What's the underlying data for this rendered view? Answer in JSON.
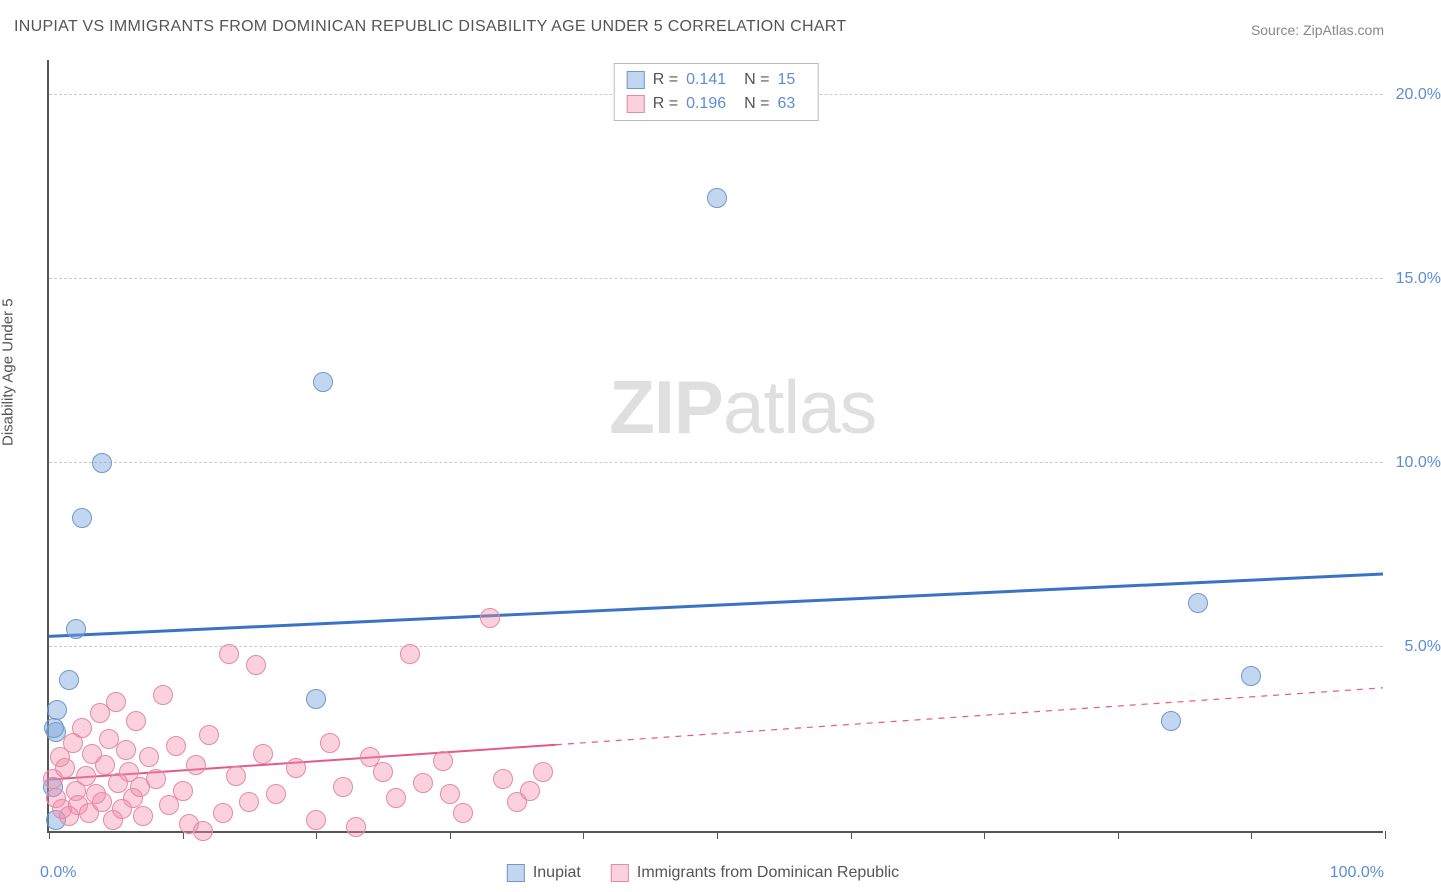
{
  "title": "INUPIAT VS IMMIGRANTS FROM DOMINICAN REPUBLIC DISABILITY AGE UNDER 5 CORRELATION CHART",
  "source": "Source: ZipAtlas.com",
  "ylabel": "Disability Age Under 5",
  "watermark_zip": "ZIP",
  "watermark_atlas": "atlas",
  "chart": {
    "type": "scatter",
    "x_axis": {
      "min": 0,
      "max": 100,
      "ticks": [
        0,
        10,
        20,
        30,
        40,
        50,
        60,
        70,
        80,
        90,
        100
      ],
      "label_min": "0.0%",
      "label_max": "100.0%"
    },
    "y_axis": {
      "min": 0,
      "max": 21,
      "gridlines": [
        5,
        10,
        15,
        20
      ],
      "labels": [
        "5.0%",
        "10.0%",
        "15.0%",
        "20.0%"
      ]
    },
    "series": [
      {
        "name": "Inupiat",
        "color_fill": "rgba(121,163,220,0.45)",
        "color_stroke": "#6e99d0",
        "marker_r": 10,
        "R": "0.141",
        "N": "15",
        "trend": {
          "y_at_x0": 5.3,
          "y_at_x100": 7.0,
          "solid_to_x": 100,
          "stroke": "#3a72c8",
          "width": 3
        },
        "points": [
          {
            "x": 0.5,
            "y": 0.3
          },
          {
            "x": 0.3,
            "y": 1.2
          },
          {
            "x": 0.5,
            "y": 2.7
          },
          {
            "x": 0.6,
            "y": 3.3
          },
          {
            "x": 1.5,
            "y": 4.1
          },
          {
            "x": 2.0,
            "y": 5.5
          },
          {
            "x": 2.5,
            "y": 8.5
          },
          {
            "x": 4.0,
            "y": 10.0
          },
          {
            "x": 20.0,
            "y": 3.6
          },
          {
            "x": 20.5,
            "y": 12.2
          },
          {
            "x": 50.0,
            "y": 17.2
          },
          {
            "x": 84.0,
            "y": 3.0
          },
          {
            "x": 86.0,
            "y": 6.2
          },
          {
            "x": 90.0,
            "y": 4.2
          },
          {
            "x": 0.4,
            "y": 2.8
          }
        ]
      },
      {
        "name": "Immigrants from Dominican Republic",
        "color_fill": "rgba(242,140,168,0.40)",
        "color_stroke": "#e68aa5",
        "marker_r": 10,
        "R": "0.196",
        "N": "63",
        "trend": {
          "y_at_x0": 1.4,
          "y_at_x100": 3.9,
          "solid_to_x": 38,
          "stroke": "#e05a8a",
          "width": 2
        },
        "points": [
          {
            "x": 0.3,
            "y": 1.4
          },
          {
            "x": 0.5,
            "y": 0.9
          },
          {
            "x": 0.8,
            "y": 2.0
          },
          {
            "x": 1.0,
            "y": 0.6
          },
          {
            "x": 1.2,
            "y": 1.7
          },
          {
            "x": 1.5,
            "y": 0.4
          },
          {
            "x": 1.8,
            "y": 2.4
          },
          {
            "x": 2.0,
            "y": 1.1
          },
          {
            "x": 2.2,
            "y": 0.7
          },
          {
            "x": 2.5,
            "y": 2.8
          },
          {
            "x": 2.8,
            "y": 1.5
          },
          {
            "x": 3.0,
            "y": 0.5
          },
          {
            "x": 3.2,
            "y": 2.1
          },
          {
            "x": 3.5,
            "y": 1.0
          },
          {
            "x": 3.8,
            "y": 3.2
          },
          {
            "x": 4.0,
            "y": 0.8
          },
          {
            "x": 4.2,
            "y": 1.8
          },
          {
            "x": 4.5,
            "y": 2.5
          },
          {
            "x": 4.8,
            "y": 0.3
          },
          {
            "x": 5.0,
            "y": 3.5
          },
          {
            "x": 5.2,
            "y": 1.3
          },
          {
            "x": 5.5,
            "y": 0.6
          },
          {
            "x": 5.8,
            "y": 2.2
          },
          {
            "x": 6.0,
            "y": 1.6
          },
          {
            "x": 6.3,
            "y": 0.9
          },
          {
            "x": 6.5,
            "y": 3.0
          },
          {
            "x": 6.8,
            "y": 1.2
          },
          {
            "x": 7.0,
            "y": 0.4
          },
          {
            "x": 7.5,
            "y": 2.0
          },
          {
            "x": 8.0,
            "y": 1.4
          },
          {
            "x": 8.5,
            "y": 3.7
          },
          {
            "x": 9.0,
            "y": 0.7
          },
          {
            "x": 9.5,
            "y": 2.3
          },
          {
            "x": 10.0,
            "y": 1.1
          },
          {
            "x": 10.5,
            "y": 0.2
          },
          {
            "x": 11.0,
            "y": 1.8
          },
          {
            "x": 11.5,
            "y": 0.0
          },
          {
            "x": 12.0,
            "y": 2.6
          },
          {
            "x": 13.0,
            "y": 0.5
          },
          {
            "x": 13.5,
            "y": 4.8
          },
          {
            "x": 14.0,
            "y": 1.5
          },
          {
            "x": 15.0,
            "y": 0.8
          },
          {
            "x": 15.5,
            "y": 4.5
          },
          {
            "x": 16.0,
            "y": 2.1
          },
          {
            "x": 17.0,
            "y": 1.0
          },
          {
            "x": 18.5,
            "y": 1.7
          },
          {
            "x": 20.0,
            "y": 0.3
          },
          {
            "x": 21.0,
            "y": 2.4
          },
          {
            "x": 22.0,
            "y": 1.2
          },
          {
            "x": 23.0,
            "y": 0.1
          },
          {
            "x": 24.0,
            "y": 2.0
          },
          {
            "x": 25.0,
            "y": 1.6
          },
          {
            "x": 26.0,
            "y": 0.9
          },
          {
            "x": 27.0,
            "y": 4.8
          },
          {
            "x": 28.0,
            "y": 1.3
          },
          {
            "x": 29.5,
            "y": 1.9
          },
          {
            "x": 30.0,
            "y": 1.0
          },
          {
            "x": 31.0,
            "y": 0.5
          },
          {
            "x": 33.0,
            "y": 5.8
          },
          {
            "x": 34.0,
            "y": 1.4
          },
          {
            "x": 35.0,
            "y": 0.8
          },
          {
            "x": 36.0,
            "y": 1.1
          },
          {
            "x": 37.0,
            "y": 1.6
          }
        ]
      }
    ]
  },
  "legend_top": {
    "r_label": "R =",
    "n_label": "N ="
  },
  "legend_bottom": [
    {
      "swatch_fill": "rgba(121,163,220,0.45)",
      "swatch_stroke": "#6e99d0",
      "label": "Inupiat"
    },
    {
      "swatch_fill": "rgba(242,140,168,0.40)",
      "swatch_stroke": "#e68aa5",
      "label": "Immigrants from Dominican Republic"
    }
  ]
}
